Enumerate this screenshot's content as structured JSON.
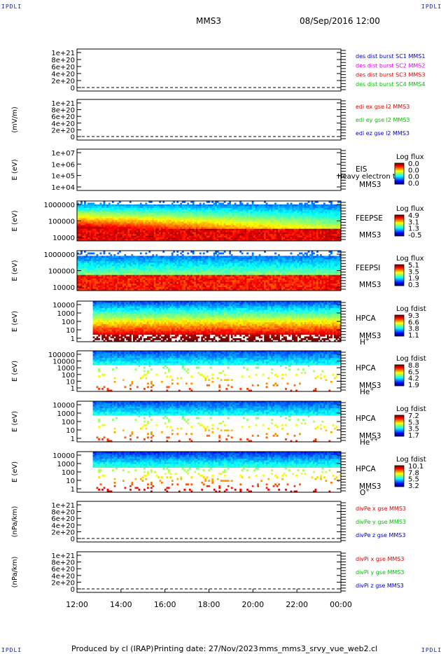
{
  "corner_label": "IPDLI",
  "header": {
    "spacecraft": "MMS3",
    "datetime": "08/Sep/2016 12:00"
  },
  "footer": {
    "produced_by": "Produced by cl (IRAP)",
    "printing_date": "Printing date: 27/Nov/2023",
    "script_name": "mms_mms3_srvy_vue_web2.cl"
  },
  "chart_data": {
    "type": "heatmap",
    "x_ticks": [
      "12:00",
      "14:00",
      "16:00",
      "18:00",
      "20:00",
      "22:00",
      "00:00"
    ],
    "panels": [
      {
        "id": "des",
        "kind": "line",
        "ylabel": "",
        "ytick_labels": [
          "1e+21",
          "8e+20",
          "6e+20",
          "4e+20",
          "2e+20",
          "0"
        ],
        "legend": [
          {
            "text": "des dist burst SC1 MMS1",
            "color": "#0000c0"
          },
          {
            "text": "des dist burst SC2 MMS2",
            "color": "#e000e0"
          },
          {
            "text": "des dist burst SC3 MMS3",
            "color": "#e00000"
          },
          {
            "text": "des dist burst SC4 MMS4",
            "color": "#00c000"
          }
        ]
      },
      {
        "id": "edi",
        "kind": "line",
        "ylabel": "(mV/m)",
        "ytick_labels": [
          "1e+21",
          "8e+20",
          "6e+20",
          "4e+20",
          "2e+20",
          "0"
        ],
        "legend": [
          {
            "text": "edi ex gse l2 MMS3",
            "color": "#e00000"
          },
          {
            "text": "edi ey gse l2 MMS3",
            "color": "#00c000"
          },
          {
            "text": "edi ez gse l2 MMS3",
            "color": "#0000c0"
          }
        ]
      },
      {
        "id": "eis",
        "kind": "spec",
        "ylabel": "E (eV)",
        "ytick_labels": [
          "1e+07",
          "1e+06",
          "1e+05",
          "1e+04"
        ],
        "instrument": "EIS",
        "subtitle": "Heavy electron to",
        "sc": "MMS3",
        "colorbar_title": "Log flux",
        "colorbar_ticks": [
          "0.0",
          "0.0",
          "0.0",
          "0.0"
        ],
        "coverage": [
          0,
          0
        ]
      },
      {
        "id": "feepse",
        "kind": "spec",
        "ylabel": "E (eV)",
        "ytick_labels": [
          "1000000",
          "100000",
          "10000"
        ],
        "instrument": "FEEPSE",
        "sc": "MMS3",
        "colorbar_title": "Log flux",
        "colorbar_ticks": [
          "4.9",
          "3.1",
          "1.3",
          "-0.5"
        ],
        "coverage": [
          0,
          1
        ]
      },
      {
        "id": "feepsi",
        "kind": "spec",
        "ylabel": "E (eV)",
        "ytick_labels": [
          "1000000",
          "100000",
          "10000"
        ],
        "instrument": "FEEPSI",
        "sc": "MMS3",
        "colorbar_title": "Log flux",
        "colorbar_ticks": [
          "5.1",
          "3.5",
          "1.9",
          "0.3"
        ],
        "coverage": [
          0,
          1
        ]
      },
      {
        "id": "hpca_h",
        "kind": "spec",
        "ylabel": "E (eV)",
        "ytick_labels": [
          "10000",
          "1000",
          "100",
          "10",
          "1"
        ],
        "instrument": "HPCA",
        "sc": "MMS3",
        "species": "H",
        "species_sup": "+",
        "colorbar_title": "Log fdist",
        "colorbar_ticks": [
          "9.3",
          "6.6",
          "3.8",
          "1.1"
        ],
        "coverage": [
          0.06,
          1
        ]
      },
      {
        "id": "hpca_he",
        "kind": "spec",
        "ylabel": "E (eV)",
        "ytick_labels": [
          "100000",
          "10000",
          "1000",
          "100",
          "10",
          "1"
        ],
        "instrument": "HPCA",
        "sc": "MMS3",
        "species": "He",
        "species_sup": "+",
        "colorbar_title": "Log fdist",
        "colorbar_ticks": [
          "8.8",
          "6.5",
          "4.2",
          "1.9"
        ],
        "coverage": [
          0.06,
          1
        ]
      },
      {
        "id": "hpca_hepp",
        "kind": "spec",
        "ylabel": "E (eV)",
        "ytick_labels": [
          "10000",
          "1000",
          "100",
          "10",
          "1"
        ],
        "instrument": "HPCA",
        "sc": "MMS3",
        "species": "He",
        "species_sup": "++",
        "colorbar_title": "Log fdist",
        "colorbar_ticks": [
          "7.2",
          "5.3",
          "3.5",
          "1.7"
        ],
        "coverage": [
          0.06,
          1
        ]
      },
      {
        "id": "hpca_o",
        "kind": "spec",
        "ylabel": "E (eV)",
        "ytick_labels": [
          "10000",
          "1000",
          "100",
          "10",
          "1"
        ],
        "instrument": "HPCA",
        "sc": "MMS3",
        "species": "O",
        "species_sup": "+",
        "colorbar_title": "Log fdist",
        "colorbar_ticks": [
          "10.1",
          "7.8",
          "5.5",
          "3.2"
        ],
        "coverage": [
          0.06,
          1
        ]
      },
      {
        "id": "divpe",
        "kind": "line",
        "ylabel": "(nPa/km)",
        "ytick_labels": [
          "1e+21",
          "8e+20",
          "6e+20",
          "4e+20",
          "2e+20",
          "0"
        ],
        "legend": [
          {
            "text": "divPe x gse MMS3",
            "color": "#e00000"
          },
          {
            "text": "divPe y gse MMS3",
            "color": "#00c000"
          },
          {
            "text": "divPe z gse MMS3",
            "color": "#0000c0"
          }
        ]
      },
      {
        "id": "divpi",
        "kind": "line",
        "ylabel": "(nPa/km)",
        "ytick_labels": [
          "1e+21",
          "8e+20",
          "6e+20",
          "4e+20",
          "2e+20",
          "0"
        ],
        "legend": [
          {
            "text": "divPi x gse MMS3",
            "color": "#e00000"
          },
          {
            "text": "divPi y gse MMS3",
            "color": "#00c000"
          },
          {
            "text": "divPi z gse MMS3",
            "color": "#0000c0"
          }
        ]
      }
    ]
  }
}
